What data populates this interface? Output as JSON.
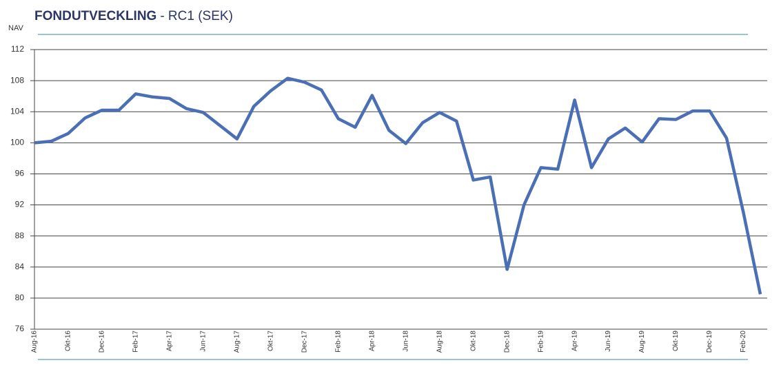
{
  "chart_data": {
    "type": "line",
    "title": "FONDUTVECKLING",
    "subtitle": "- RC1 (SEK)",
    "y_label": "NAV",
    "categories": [
      "Aug-16",
      null,
      "Okt-16",
      null,
      "Dec-16",
      null,
      "Feb-17",
      null,
      "Apr-17",
      null,
      "Jun-17",
      null,
      "Aug-17",
      null,
      "Okt-17",
      null,
      "Dec-17",
      null,
      "Feb-18",
      null,
      "Apr-18",
      null,
      "Jun-18",
      null,
      "Aug-18",
      null,
      "Okt-18",
      null,
      "Dec-18",
      null,
      "Feb-19",
      null,
      "Apr-19",
      null,
      "Jun-19",
      null,
      "Aug-19",
      null,
      "Okt-19",
      null,
      "Dec-19",
      null,
      "Feb-20",
      null
    ],
    "series": [
      {
        "name": "RC1",
        "color": "#4a6fb5",
        "values": [
          100.0,
          100.2,
          101.2,
          103.2,
          104.2,
          104.2,
          106.3,
          105.9,
          105.7,
          104.4,
          103.9,
          102.2,
          100.5,
          104.7,
          106.7,
          108.3,
          107.8,
          106.8,
          103.1,
          102.0,
          106.1,
          101.6,
          99.9,
          102.6,
          103.9,
          102.8,
          95.2,
          95.6,
          83.7,
          92.0,
          96.8,
          96.6,
          105.5,
          96.8,
          100.5,
          101.9,
          100.1,
          103.1,
          103.0,
          104.1,
          104.1,
          100.6,
          91.0,
          80.5
        ]
      }
    ],
    "ylim": [
      76,
      112
    ],
    "yticks": [
      76,
      80,
      84,
      88,
      92,
      96,
      100,
      104,
      108,
      112
    ],
    "grid": true
  }
}
